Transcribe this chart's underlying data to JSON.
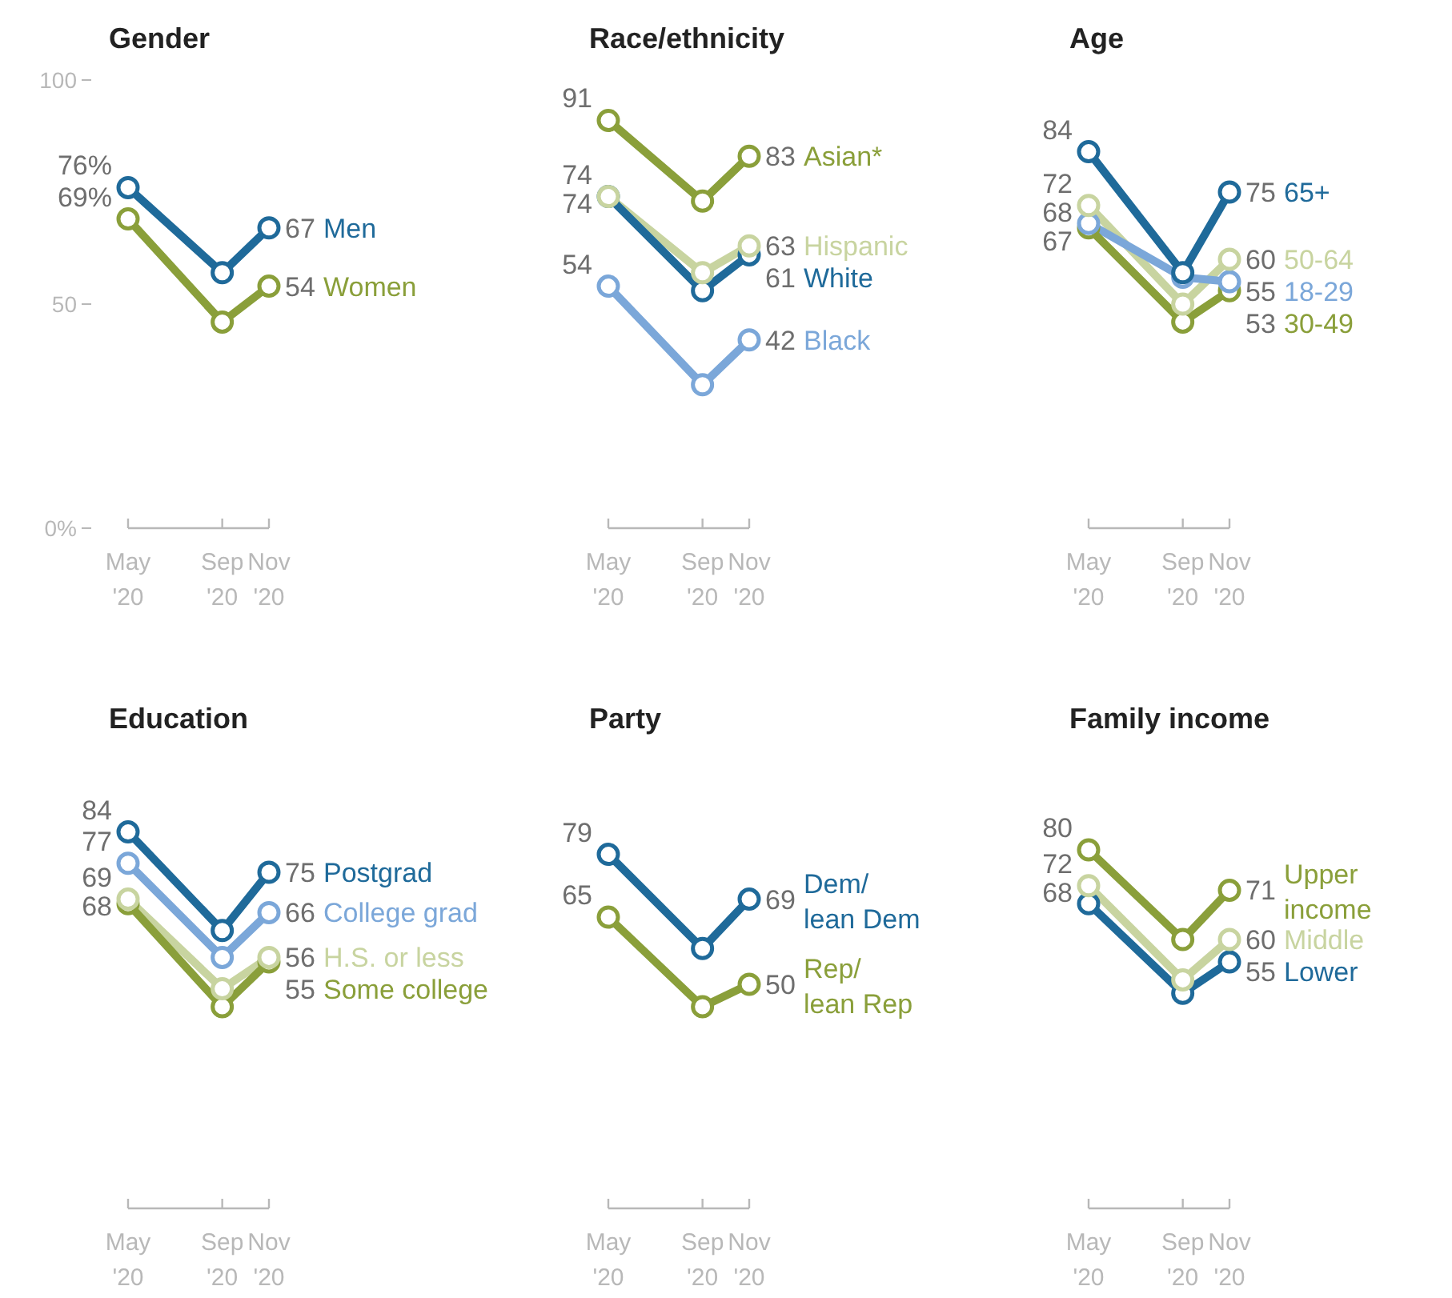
{
  "chart_data": [
    {
      "type": "line",
      "title": "Gender",
      "x": [
        "2020-05",
        "2020-09",
        "2020-11"
      ],
      "xlim": [
        "2020-05",
        "2020-11"
      ],
      "xticks": [
        {
          "value": "2020-05",
          "label": "May '20"
        },
        {
          "value": "2020-09",
          "label": "Sep '20"
        },
        {
          "value": "2020-11",
          "label": "Nov '20"
        }
      ],
      "ylim": [
        0,
        100
      ],
      "yticks": [
        {
          "value": 0,
          "label": "0%"
        },
        50,
        100
      ],
      "marker": "circle",
      "legend": false,
      "grid": false,
      "series": [
        {
          "name": "Men",
          "color": "#1f6a9a",
          "values": [
            76,
            57,
            67
          ],
          "value_labels": [
            "76%",
            null,
            "67"
          ]
        },
        {
          "name": "Women",
          "color": "#8a9f3a",
          "values": [
            69,
            46,
            54
          ],
          "value_labels": [
            "69%",
            null,
            "54"
          ]
        }
      ]
    },
    {
      "type": "line",
      "title": "Race/ethnicity",
      "x": [
        "2020-05",
        "2020-09",
        "2020-11"
      ],
      "xlim": [
        "2020-05",
        "2020-11"
      ],
      "xticks": [
        {
          "value": "2020-05",
          "label": "May '20"
        },
        {
          "value": "2020-09",
          "label": "Sep '20"
        },
        {
          "value": "2020-11",
          "label": "Nov '20"
        }
      ],
      "ylim": [
        0,
        100
      ],
      "tick_labels": "x",
      "marker": "circle",
      "legend": false,
      "grid": false,
      "series": [
        {
          "name": "Asian*",
          "color": "#8a9f3a",
          "values": [
            91,
            73,
            83
          ],
          "value_labels": [
            "91",
            null,
            "83"
          ]
        },
        {
          "name": "Hispanic",
          "color": "#c8d4a0",
          "values": [
            74,
            57,
            63
          ],
          "value_labels": [
            "74",
            null,
            "63"
          ]
        },
        {
          "name": "White",
          "color": "#1f6a9a",
          "values": [
            74,
            53,
            61
          ],
          "value_labels": [
            "74",
            null,
            "61"
          ]
        },
        {
          "name": "Black",
          "color": "#7ba7d9",
          "values": [
            54,
            32,
            42
          ],
          "value_labels": [
            "54",
            null,
            "42"
          ]
        }
      ]
    },
    {
      "type": "line",
      "title": "Age",
      "x": [
        "2020-05",
        "2020-09",
        "2020-11"
      ],
      "xlim": [
        "2020-05",
        "2020-11"
      ],
      "xticks": [
        {
          "value": "2020-05",
          "label": "May '20"
        },
        {
          "value": "2020-09",
          "label": "Sep '20"
        },
        {
          "value": "2020-11",
          "label": "Nov '20"
        }
      ],
      "ylim": [
        0,
        100
      ],
      "tick_labels": "x",
      "marker": "circle",
      "legend": false,
      "grid": false,
      "series": [
        {
          "name": "65+",
          "color": "#1f6a9a",
          "values": [
            84,
            57,
            75
          ],
          "value_labels": [
            "84",
            null,
            "75"
          ]
        },
        {
          "name": "50-64",
          "color": "#c8d4a0",
          "values": [
            72,
            50,
            60
          ],
          "value_labels": [
            "72",
            null,
            "60"
          ]
        },
        {
          "name": "18-29",
          "color": "#7ba7d9",
          "values": [
            68,
            56,
            55
          ],
          "value_labels": [
            "68",
            null,
            "55"
          ]
        },
        {
          "name": "30-49",
          "color": "#8a9f3a",
          "values": [
            67,
            46,
            53
          ],
          "value_labels": [
            "67",
            null,
            "53"
          ]
        }
      ]
    },
    {
      "type": "line",
      "title": "Education",
      "x": [
        "2020-05",
        "2020-09",
        "2020-11"
      ],
      "xlim": [
        "2020-05",
        "2020-11"
      ],
      "xticks": [
        {
          "value": "2020-05",
          "label": "May '20"
        },
        {
          "value": "2020-09",
          "label": "Sep '20"
        },
        {
          "value": "2020-11",
          "label": "Nov '20"
        }
      ],
      "tick_labels": "x",
      "marker": "circle",
      "legend": false,
      "grid": false,
      "series": [
        {
          "name": "Postgrad",
          "color": "#1f6a9a",
          "values": [
            84,
            62,
            75
          ],
          "value_labels": [
            "84",
            null,
            "75"
          ]
        },
        {
          "name": "College grad",
          "color": "#7ba7d9",
          "values": [
            77,
            56,
            66
          ],
          "value_labels": [
            "77",
            null,
            "66"
          ]
        },
        {
          "name": "H.S. or less",
          "color": "#c8d4a0",
          "values": [
            69,
            49,
            56
          ],
          "value_labels": [
            "69",
            null,
            "56"
          ]
        },
        {
          "name": "Some college",
          "color": "#8a9f3a",
          "values": [
            68,
            45,
            55
          ],
          "value_labels": [
            "68",
            null,
            "55"
          ]
        }
      ]
    },
    {
      "type": "line",
      "title": "Party",
      "x": [
        "2020-05",
        "2020-09",
        "2020-11"
      ],
      "xlim": [
        "2020-05",
        "2020-11"
      ],
      "xticks": [
        {
          "value": "2020-05",
          "label": "May '20"
        },
        {
          "value": "2020-09",
          "label": "Sep '20"
        },
        {
          "value": "2020-11",
          "label": "Nov '20"
        }
      ],
      "tick_labels": "x",
      "marker": "circle",
      "legend": false,
      "grid": false,
      "series": [
        {
          "name": "Dem/\nlean Dem",
          "color": "#1f6a9a",
          "values": [
            79,
            58,
            69
          ],
          "value_labels": [
            "79",
            null,
            "69"
          ]
        },
        {
          "name": "Rep/\nlean Rep",
          "color": "#8a9f3a",
          "values": [
            65,
            45,
            50
          ],
          "value_labels": [
            "65",
            null,
            "50"
          ]
        }
      ]
    },
    {
      "type": "line",
      "title": "Family income",
      "x": [
        "2020-05",
        "2020-09",
        "2020-11"
      ],
      "xlim": [
        "2020-05",
        "2020-11"
      ],
      "xticks": [
        {
          "value": "2020-05",
          "label": "May '20"
        },
        {
          "value": "2020-09",
          "label": "Sep '20"
        },
        {
          "value": "2020-11",
          "label": "Nov '20"
        }
      ],
      "tick_labels": "x",
      "marker": "circle",
      "legend": false,
      "grid": false,
      "series": [
        {
          "name": "Upper\nincome",
          "color": "#8a9f3a",
          "values": [
            80,
            60,
            71
          ],
          "value_labels": [
            "80",
            null,
            "71"
          ]
        },
        {
          "name": "Middle",
          "color": "#c8d4a0",
          "values": [
            72,
            51,
            60
          ],
          "value_labels": [
            "72",
            null,
            "60"
          ]
        },
        {
          "name": "Lower",
          "color": "#1f6a9a",
          "values": [
            68,
            48,
            55
          ],
          "value_labels": [
            "68",
            null,
            "55"
          ]
        }
      ]
    }
  ]
}
